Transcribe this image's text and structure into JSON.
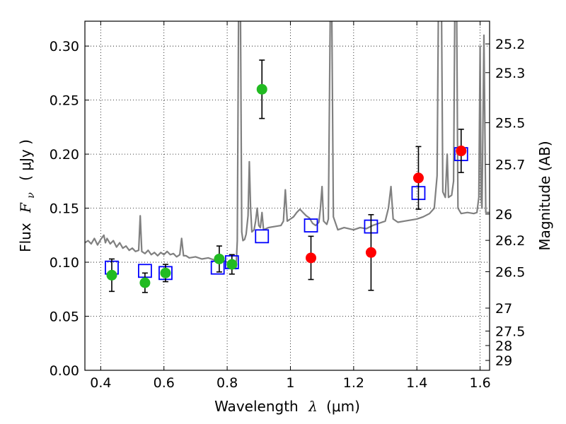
{
  "chart_data": {
    "type": "scatter",
    "xlabel_main": "Wavelength",
    "xlabel_symbol": "λ",
    "xlabel_unit": "(μm)",
    "ylabel_main": "Flux",
    "ylabel_symbol": "F",
    "ylabel_symbol_sub": "ν",
    "ylabel_unit": "( μJy )",
    "y2label": "Magnitude (AB)",
    "xlim": [
      0.35,
      1.63
    ],
    "ylim": [
      0.0,
      0.323
    ],
    "xticks": [
      {
        "v": 0.4,
        "label": "0.4"
      },
      {
        "v": 0.6,
        "label": "0.6"
      },
      {
        "v": 0.8,
        "label": "0.8"
      },
      {
        "v": 1.0,
        "label": "1"
      },
      {
        "v": 1.2,
        "label": "1.2"
      },
      {
        "v": 1.4,
        "label": "1.4"
      },
      {
        "v": 1.6,
        "label": "1.6"
      }
    ],
    "yticks": [
      {
        "v": 0.0,
        "label": "0.00"
      },
      {
        "v": 0.05,
        "label": "0.05"
      },
      {
        "v": 0.1,
        "label": "0.10"
      },
      {
        "v": 0.15,
        "label": "0.15"
      },
      {
        "v": 0.2,
        "label": "0.20"
      },
      {
        "v": 0.25,
        "label": "0.25"
      },
      {
        "v": 0.3,
        "label": "0.30"
      }
    ],
    "y2ticks": [
      {
        "mag": 25.2,
        "label": "25.2"
      },
      {
        "mag": 25.3,
        "label": "25.3"
      },
      {
        "mag": 25.5,
        "label": "25.5"
      },
      {
        "mag": 25.7,
        "label": "25.7"
      },
      {
        "mag": 26.0,
        "label": "26"
      },
      {
        "mag": 26.2,
        "label": "26.2"
      },
      {
        "mag": 26.5,
        "label": "26.5"
      },
      {
        "mag": 27.0,
        "label": "27"
      },
      {
        "mag": 27.5,
        "label": "27.5"
      },
      {
        "mag": 28.0,
        "label": "28"
      },
      {
        "mag": 29.0,
        "label": "29"
      }
    ],
    "grid": true,
    "colors": {
      "spectrum": "#808080",
      "model_box": "#0000ff",
      "green_points": "#22bb22",
      "red_points": "#ff0000",
      "errorbar": "#000000"
    },
    "spectrum": [
      [
        0.35,
        0.118
      ],
      [
        0.36,
        0.12
      ],
      [
        0.37,
        0.117
      ],
      [
        0.38,
        0.122
      ],
      [
        0.39,
        0.116
      ],
      [
        0.4,
        0.121
      ],
      [
        0.41,
        0.125
      ],
      [
        0.415,
        0.118
      ],
      [
        0.42,
        0.122
      ],
      [
        0.43,
        0.117
      ],
      [
        0.44,
        0.12
      ],
      [
        0.45,
        0.114
      ],
      [
        0.46,
        0.118
      ],
      [
        0.47,
        0.113
      ],
      [
        0.48,
        0.115
      ],
      [
        0.49,
        0.111
      ],
      [
        0.5,
        0.113
      ],
      [
        0.51,
        0.11
      ],
      [
        0.52,
        0.111
      ],
      [
        0.525,
        0.143
      ],
      [
        0.53,
        0.11
      ],
      [
        0.54,
        0.108
      ],
      [
        0.55,
        0.111
      ],
      [
        0.56,
        0.107
      ],
      [
        0.57,
        0.109
      ],
      [
        0.58,
        0.106
      ],
      [
        0.59,
        0.109
      ],
      [
        0.6,
        0.107
      ],
      [
        0.61,
        0.11
      ],
      [
        0.62,
        0.107
      ],
      [
        0.63,
        0.108
      ],
      [
        0.64,
        0.105
      ],
      [
        0.65,
        0.107
      ],
      [
        0.656,
        0.122
      ],
      [
        0.662,
        0.106
      ],
      [
        0.67,
        0.106
      ],
      [
        0.68,
        0.104
      ],
      [
        0.7,
        0.105
      ],
      [
        0.72,
        0.103
      ],
      [
        0.74,
        0.104
      ],
      [
        0.76,
        0.102
      ],
      [
        0.78,
        0.103
      ],
      [
        0.8,
        0.1
      ],
      [
        0.81,
        0.098
      ],
      [
        0.82,
        0.095
      ],
      [
        0.828,
        0.094
      ],
      [
        0.832,
        0.12
      ],
      [
        0.836,
        0.33
      ],
      [
        0.842,
        0.33
      ],
      [
        0.846,
        0.128
      ],
      [
        0.85,
        0.12
      ],
      [
        0.855,
        0.121
      ],
      [
        0.86,
        0.126
      ],
      [
        0.866,
        0.143
      ],
      [
        0.87,
        0.193
      ],
      [
        0.874,
        0.15
      ],
      [
        0.878,
        0.128
      ],
      [
        0.885,
        0.13
      ],
      [
        0.89,
        0.138
      ],
      [
        0.895,
        0.15
      ],
      [
        0.9,
        0.134
      ],
      [
        0.905,
        0.132
      ],
      [
        0.91,
        0.146
      ],
      [
        0.915,
        0.13
      ],
      [
        0.93,
        0.132
      ],
      [
        0.95,
        0.133
      ],
      [
        0.97,
        0.134
      ],
      [
        0.978,
        0.138
      ],
      [
        0.984,
        0.167
      ],
      [
        0.99,
        0.138
      ],
      [
        1.0,
        0.14
      ],
      [
        1.01,
        0.142
      ],
      [
        1.02,
        0.146
      ],
      [
        1.03,
        0.149
      ],
      [
        1.04,
        0.146
      ],
      [
        1.05,
        0.143
      ],
      [
        1.06,
        0.141
      ],
      [
        1.07,
        0.136
      ],
      [
        1.08,
        0.134
      ],
      [
        1.09,
        0.137
      ],
      [
        1.095,
        0.15
      ],
      [
        1.1,
        0.17
      ],
      [
        1.105,
        0.138
      ],
      [
        1.115,
        0.135
      ],
      [
        1.12,
        0.14
      ],
      [
        1.126,
        0.33
      ],
      [
        1.131,
        0.33
      ],
      [
        1.136,
        0.142
      ],
      [
        1.15,
        0.13
      ],
      [
        1.17,
        0.132
      ],
      [
        1.2,
        0.13
      ],
      [
        1.22,
        0.132
      ],
      [
        1.24,
        0.131
      ],
      [
        1.26,
        0.134
      ],
      [
        1.28,
        0.136
      ],
      [
        1.3,
        0.138
      ],
      [
        1.31,
        0.15
      ],
      [
        1.318,
        0.17
      ],
      [
        1.325,
        0.14
      ],
      [
        1.34,
        0.137
      ],
      [
        1.36,
        0.138
      ],
      [
        1.38,
        0.139
      ],
      [
        1.4,
        0.14
      ],
      [
        1.42,
        0.142
      ],
      [
        1.44,
        0.145
      ],
      [
        1.455,
        0.15
      ],
      [
        1.464,
        0.18
      ],
      [
        1.468,
        0.33
      ],
      [
        1.478,
        0.33
      ],
      [
        1.482,
        0.165
      ],
      [
        1.49,
        0.16
      ],
      [
        1.496,
        0.2
      ],
      [
        1.5,
        0.16
      ],
      [
        1.51,
        0.162
      ],
      [
        1.516,
        0.175
      ],
      [
        1.52,
        0.33
      ],
      [
        1.526,
        0.33
      ],
      [
        1.53,
        0.15
      ],
      [
        1.54,
        0.145
      ],
      [
        1.56,
        0.146
      ],
      [
        1.58,
        0.145
      ],
      [
        1.59,
        0.146
      ],
      [
        1.596,
        0.16
      ],
      [
        1.6,
        0.3
      ],
      [
        1.603,
        0.16
      ],
      [
        1.606,
        0.15
      ],
      [
        1.612,
        0.31
      ],
      [
        1.618,
        0.146
      ],
      [
        1.63,
        0.146
      ]
    ],
    "model_boxes": [
      {
        "x": 0.435,
        "y": 0.095
      },
      {
        "x": 0.54,
        "y": 0.092
      },
      {
        "x": 0.605,
        "y": 0.09
      },
      {
        "x": 0.77,
        "y": 0.095
      },
      {
        "x": 0.815,
        "y": 0.1
      },
      {
        "x": 0.91,
        "y": 0.124
      },
      {
        "x": 1.065,
        "y": 0.134
      },
      {
        "x": 1.255,
        "y": 0.133
      },
      {
        "x": 1.405,
        "y": 0.164
      },
      {
        "x": 1.54,
        "y": 0.2
      }
    ],
    "green_points": [
      {
        "x": 0.435,
        "y": 0.088,
        "err": 0.015
      },
      {
        "x": 0.54,
        "y": 0.081,
        "err": 0.009
      },
      {
        "x": 0.605,
        "y": 0.09,
        "err": 0.008
      },
      {
        "x": 0.775,
        "y": 0.103,
        "err": 0.012
      },
      {
        "x": 0.815,
        "y": 0.098,
        "err": 0.009
      },
      {
        "x": 0.91,
        "y": 0.26,
        "err": 0.027
      }
    ],
    "red_points": [
      {
        "x": 1.065,
        "y": 0.104,
        "err": 0.02
      },
      {
        "x": 1.255,
        "y": 0.109,
        "err": 0.035
      },
      {
        "x": 1.405,
        "y": 0.178,
        "err": 0.029
      },
      {
        "x": 1.54,
        "y": 0.203,
        "err": 0.02
      }
    ]
  }
}
